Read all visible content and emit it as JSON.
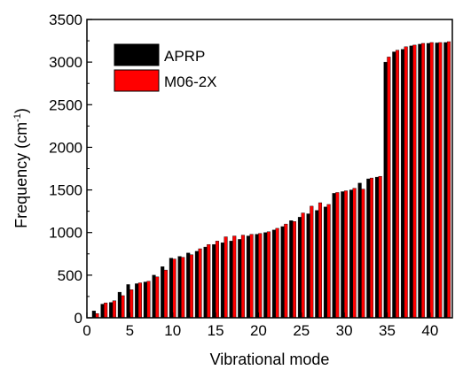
{
  "chart_data": {
    "type": "bar",
    "xlabel": "Vibrational mode",
    "ylabel_main": "Frequency (cm",
    "ylabel_sup": "-1",
    "ylabel_close": ")",
    "xlim": [
      0,
      42.6
    ],
    "ylim": [
      0,
      3500
    ],
    "xticks": [
      0,
      5,
      10,
      15,
      20,
      25,
      30,
      35,
      40
    ],
    "yticks": [
      0,
      500,
      1000,
      1500,
      2000,
      2500,
      3000,
      3500
    ],
    "grid": false,
    "legend_position": "top-left",
    "x": [
      1,
      2,
      3,
      4,
      5,
      6,
      7,
      8,
      9,
      10,
      11,
      12,
      13,
      14,
      15,
      16,
      17,
      18,
      19,
      20,
      21,
      22,
      23,
      24,
      25,
      26,
      27,
      28,
      29,
      30,
      31,
      32,
      33,
      34,
      35,
      36,
      37,
      38,
      39,
      40,
      41,
      42
    ],
    "series": [
      {
        "name": "APRP",
        "color": "#000000",
        "values": [
          80,
          160,
          180,
          300,
          390,
          400,
          420,
          500,
          600,
          700,
          720,
          760,
          780,
          830,
          860,
          880,
          900,
          920,
          960,
          980,
          1000,
          1030,
          1070,
          1140,
          1180,
          1220,
          1260,
          1300,
          1460,
          1480,
          1500,
          1580,
          1630,
          1650,
          3000,
          3120,
          3150,
          3190,
          3210,
          3220,
          3225,
          3230
        ]
      },
      {
        "name": "M06-2X",
        "color": "#ff0000",
        "values": [
          50,
          175,
          200,
          260,
          330,
          410,
          430,
          480,
          560,
          690,
          710,
          740,
          810,
          860,
          900,
          950,
          960,
          970,
          980,
          990,
          1010,
          1050,
          1100,
          1130,
          1230,
          1310,
          1350,
          1330,
          1470,
          1490,
          1520,
          1510,
          1640,
          1660,
          3060,
          3140,
          3180,
          3200,
          3220,
          3230,
          3230,
          3240
        ]
      }
    ]
  }
}
